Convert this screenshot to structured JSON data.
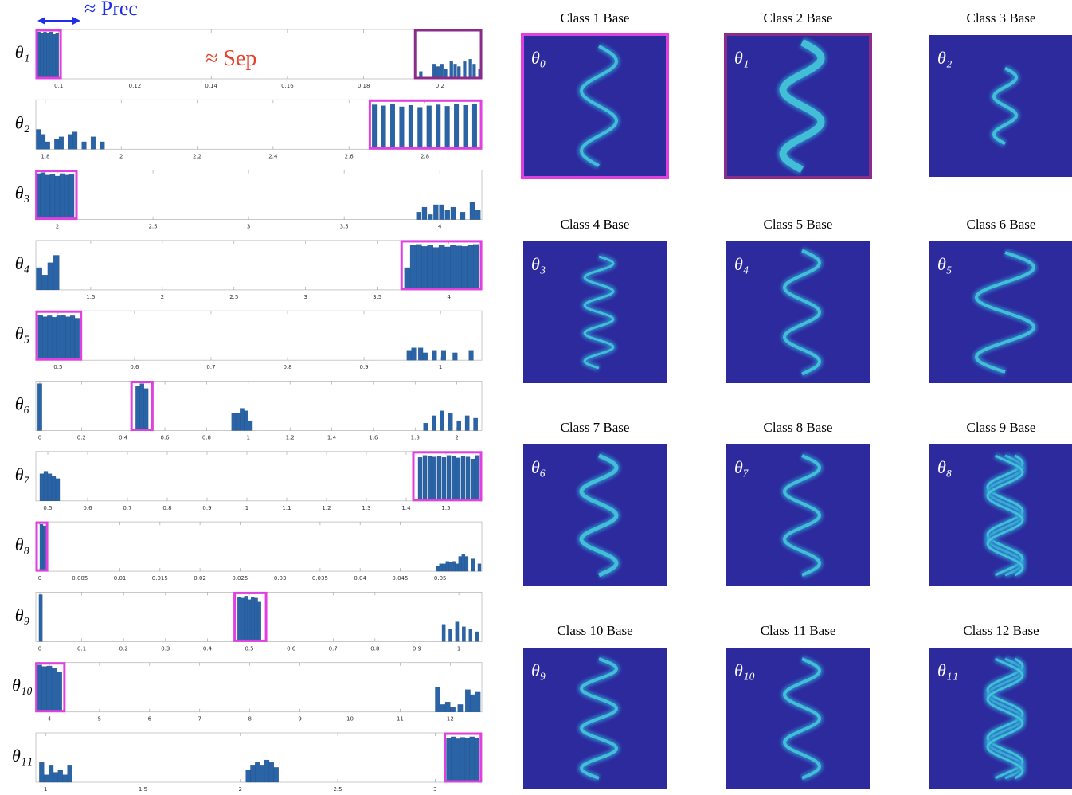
{
  "chart_data": [
    {
      "type": "histogram",
      "ylabel": "θ₁",
      "color": "#2a64a6",
      "bin_width": 0.0008,
      "x": [
        0.0948,
        0.0956,
        0.0964,
        0.0972,
        0.098,
        0.0988,
        0.0996,
        0.195,
        0.1985,
        0.1995,
        0.2005,
        0.2015,
        0.203,
        0.204,
        0.205,
        0.2065,
        0.208,
        0.209,
        0.2105
      ],
      "values": [
        95,
        92,
        95,
        93,
        95,
        90,
        93,
        15,
        30,
        25,
        30,
        20,
        35,
        30,
        25,
        35,
        40,
        30,
        20
      ],
      "xlim": [
        0.094,
        0.211
      ],
      "ylim": [
        0,
        100
      ],
      "xticks": [
        0.1,
        0.12,
        0.14,
        0.16,
        0.18,
        0.2
      ],
      "highlights": [
        {
          "range": [
            0.0942,
            0.1005
          ],
          "color": "#e040e0"
        },
        {
          "range": [
            0.1935,
            0.2108
          ],
          "color": "#8b2c8b"
        }
      ],
      "annotations": [
        {
          "text": "≈ Prec",
          "color": "#1f2fe8"
        },
        {
          "text": "≈ Sep",
          "color": "#e8412c"
        }
      ]
    },
    {
      "type": "histogram",
      "ylabel": "θ₂",
      "color": "#2a64a6",
      "bin_width": 0.012,
      "x": [
        1.782,
        1.794,
        1.806,
        1.83,
        1.842,
        1.866,
        1.878,
        1.902,
        1.926,
        1.95,
        2.667,
        2.691,
        2.715,
        2.739,
        2.763,
        2.787,
        2.811,
        2.835,
        2.859,
        2.883,
        2.907,
        2.931
      ],
      "values": [
        40,
        30,
        15,
        20,
        25,
        30,
        35,
        15,
        25,
        15,
        90,
        88,
        92,
        86,
        89,
        85,
        88,
        90,
        87,
        92,
        89,
        91
      ],
      "xlim": [
        1.775,
        2.95
      ],
      "ylim": [
        0,
        100
      ],
      "xticks": [
        1.8,
        2,
        2.2,
        2.4,
        2.6,
        2.8
      ],
      "highlights": [
        {
          "range": [
            2.655,
            2.948
          ],
          "color": "#e040e0"
        }
      ]
    },
    {
      "type": "histogram",
      "ylabel": "θ₃",
      "color": "#2a64a6",
      "bin_width": 0.025,
      "x": [
        1.9,
        1.925,
        1.95,
        1.975,
        2.0,
        2.025,
        2.05,
        2.075,
        3.89,
        3.92,
        3.95,
        3.98,
        4.01,
        4.04,
        4.07,
        4.12,
        4.17,
        4.2
      ],
      "values": [
        93,
        95,
        90,
        92,
        88,
        93,
        90,
        91,
        15,
        25,
        10,
        30,
        30,
        20,
        25,
        15,
        35,
        20
      ],
      "xlim": [
        1.8875,
        4.22
      ],
      "ylim": [
        0,
        100
      ],
      "xticks": [
        2,
        2.5,
        3,
        3.5,
        4
      ],
      "highlights": [
        {
          "range": [
            1.89,
            2.1
          ],
          "color": "#e040e0"
        }
      ]
    },
    {
      "type": "histogram",
      "ylabel": "θ₄",
      "color": "#2a64a6",
      "bin_width": 0.04,
      "x": [
        1.14,
        1.18,
        1.22,
        1.26,
        3.71,
        3.75,
        3.79,
        3.83,
        3.87,
        3.91,
        3.95,
        3.99,
        4.03,
        4.07,
        4.11,
        4.15,
        4.19
      ],
      "values": [
        45,
        30,
        55,
        70,
        45,
        90,
        92,
        88,
        90,
        86,
        90,
        87,
        91,
        89,
        88,
        90,
        92
      ],
      "xlim": [
        1.117,
        4.23
      ],
      "ylim": [
        0,
        100
      ],
      "xticks": [
        1.5,
        2,
        2.5,
        3,
        3.5,
        4
      ],
      "highlights": [
        {
          "range": [
            3.67,
            4.225
          ],
          "color": "#e040e0"
        }
      ]
    },
    {
      "type": "histogram",
      "ylabel": "θ₅",
      "color": "#2a64a6",
      "bin_width": 0.006,
      "x": [
        0.477,
        0.483,
        0.489,
        0.495,
        0.501,
        0.507,
        0.513,
        0.519,
        0.525,
        0.959,
        0.965,
        0.974,
        0.98,
        0.992,
        1.004,
        1.019,
        1.04
      ],
      "values": [
        92,
        88,
        90,
        87,
        90,
        92,
        88,
        90,
        85,
        20,
        25,
        25,
        15,
        20,
        20,
        15,
        20
      ],
      "xlim": [
        0.471,
        1.054
      ],
      "ylim": [
        0,
        100
      ],
      "xticks": [
        0.5,
        0.6,
        0.7,
        0.8,
        0.9,
        1
      ],
      "highlights": [
        {
          "range": [
            0.472,
            0.53
          ],
          "color": "#e040e0"
        }
      ]
    },
    {
      "type": "histogram",
      "ylabel": "θ₆",
      "color": "#2a64a6",
      "bin_width": 0.02,
      "x": [
        0,
        0.47,
        0.49,
        0.51,
        0.93,
        0.95,
        0.97,
        0.99,
        1.01,
        1.85,
        1.89,
        1.93,
        1.97,
        2.01,
        2.05,
        2.09
      ],
      "values": [
        95,
        90,
        95,
        85,
        35,
        35,
        45,
        40,
        20,
        15,
        30,
        40,
        35,
        20,
        30,
        25
      ],
      "xlim": [
        -0.019,
        2.12
      ],
      "ylim": [
        0,
        100
      ],
      "xticks": [
        0,
        0.2,
        0.4,
        0.6,
        0.8,
        1,
        1.2,
        1.4,
        1.6,
        1.8,
        2
      ],
      "highlights": [
        {
          "range": [
            0.44,
            0.54
          ],
          "color": "#e040e0"
        }
      ]
    },
    {
      "type": "histogram",
      "ylabel": "θ₇",
      "color": "#2a64a6",
      "bin_width": 0.01,
      "x": [
        0.485,
        0.495,
        0.505,
        0.515,
        0.525,
        1.435,
        1.447,
        1.459,
        1.471,
        1.483,
        1.495,
        1.507,
        1.519,
        1.531,
        1.543,
        1.555,
        1.567,
        1.579
      ],
      "values": [
        55,
        60,
        55,
        50,
        45,
        88,
        92,
        90,
        89,
        91,
        88,
        92,
        90,
        87,
        91,
        89,
        85,
        92
      ],
      "xlim": [
        0.47,
        1.59
      ],
      "ylim": [
        0,
        100
      ],
      "xticks": [
        0.5,
        0.6,
        0.7,
        0.8,
        0.9,
        1,
        1.1,
        1.2,
        1.3,
        1.4,
        1.5
      ],
      "highlights": [
        {
          "range": [
            1.418,
            1.588
          ],
          "color": "#e040e0"
        }
      ]
    },
    {
      "type": "histogram",
      "ylabel": "θ₈",
      "color": "#2a64a6",
      "bin_width": 0.0004,
      "x": [
        0.0002,
        0.0006,
        0.0497,
        0.0501,
        0.0505,
        0.0509,
        0.0513,
        0.0517,
        0.0521,
        0.0525,
        0.0529,
        0.0533,
        0.0541,
        0.0549
      ],
      "values": [
        95,
        92,
        10,
        15,
        15,
        20,
        18,
        20,
        15,
        30,
        35,
        30,
        25,
        15
      ],
      "xlim": [
        -0.0005,
        0.0552
      ],
      "ylim": [
        0,
        100
      ],
      "xticks": [
        0,
        0.005,
        0.01,
        0.015,
        0.02,
        0.025,
        0.03,
        0.035,
        0.04,
        0.045,
        0.05
      ],
      "highlights": [
        {
          "range": [
            -0.0004,
            0.0009
          ],
          "color": "#e040e0"
        }
      ]
    },
    {
      "type": "histogram",
      "ylabel": "θ₉",
      "color": "#2a64a6",
      "bin_width": 0.008,
      "x": [
        0.002,
        0.476,
        0.484,
        0.492,
        0.5,
        0.508,
        0.516,
        0.524,
        0.964,
        0.98,
        0.996,
        1.012,
        1.028,
        1.044
      ],
      "values": [
        95,
        90,
        88,
        92,
        85,
        90,
        88,
        80,
        35,
        25,
        40,
        30,
        25,
        20
      ],
      "xlim": [
        -0.0095,
        1.055
      ],
      "ylim": [
        0,
        100
      ],
      "xticks": [
        0,
        0.1,
        0.2,
        0.3,
        0.4,
        0.5,
        0.6,
        0.7,
        0.8,
        0.9,
        1
      ],
      "highlights": [
        {
          "range": [
            0.465,
            0.54
          ],
          "color": "#e040e0"
        }
      ]
    },
    {
      "type": "histogram",
      "ylabel": "θ₁₀",
      "color": "#2a64a6",
      "bin_width": 0.1,
      "x": [
        3.8,
        3.9,
        4.0,
        4.1,
        4.2,
        11.75,
        11.85,
        11.95,
        12.05,
        12.2,
        12.35,
        12.45,
        12.55
      ],
      "values": [
        95,
        92,
        93,
        88,
        80,
        50,
        15,
        20,
        10,
        15,
        45,
        35,
        40
      ],
      "xlim": [
        3.73,
        12.63
      ],
      "ylim": [
        0,
        100
      ],
      "xticks": [
        4,
        5,
        6,
        7,
        8,
        9,
        10,
        11,
        12
      ],
      "highlights": [
        {
          "range": [
            3.74,
            4.3
          ],
          "color": "#e040e0"
        }
      ]
    },
    {
      "type": "histogram",
      "ylabel": "θ₁₁",
      "color": "#2a64a6",
      "bin_width": 0.024,
      "x": [
        0.98,
        1.004,
        1.028,
        1.052,
        1.076,
        1.1,
        1.124,
        2.04,
        2.064,
        2.088,
        2.112,
        2.136,
        2.16,
        2.184,
        3.07,
        3.094,
        3.118,
        3.142,
        3.166,
        3.19,
        3.214
      ],
      "values": [
        40,
        15,
        35,
        20,
        25,
        15,
        35,
        25,
        35,
        40,
        35,
        45,
        40,
        30,
        90,
        92,
        88,
        91,
        89,
        92,
        90
      ],
      "xlim": [
        0.95,
        3.24
      ],
      "ylim": [
        0,
        100
      ],
      "xticks": [
        1,
        1.5,
        2,
        2.5,
        3
      ],
      "highlights": [
        {
          "range": [
            3.05,
            3.235
          ],
          "color": "#e040e0"
        }
      ]
    }
  ],
  "image_panels": [
    {
      "title": "Class 1 Base",
      "label": "θ₀",
      "border": "#e040e0"
    },
    {
      "title": "Class 2 Base",
      "label": "θ₁",
      "border": "#8b2c8b"
    },
    {
      "title": "Class 3 Base",
      "label": "θ₂"
    },
    {
      "title": "Class 4 Base",
      "label": "θ₃"
    },
    {
      "title": "Class 5 Base",
      "label": "θ₄"
    },
    {
      "title": "Class 6 Base",
      "label": "θ₅"
    },
    {
      "title": "Class 7 Base",
      "label": "θ₆"
    },
    {
      "title": "Class 8 Base",
      "label": "θ₇"
    },
    {
      "title": "Class 9 Base",
      "label": "θ₈"
    },
    {
      "title": "Class 10 Base",
      "label": "θ₉"
    },
    {
      "title": "Class 11 Base",
      "label": "θ₁₀"
    },
    {
      "title": "Class 12 Base",
      "label": "θ₁₁"
    }
  ]
}
